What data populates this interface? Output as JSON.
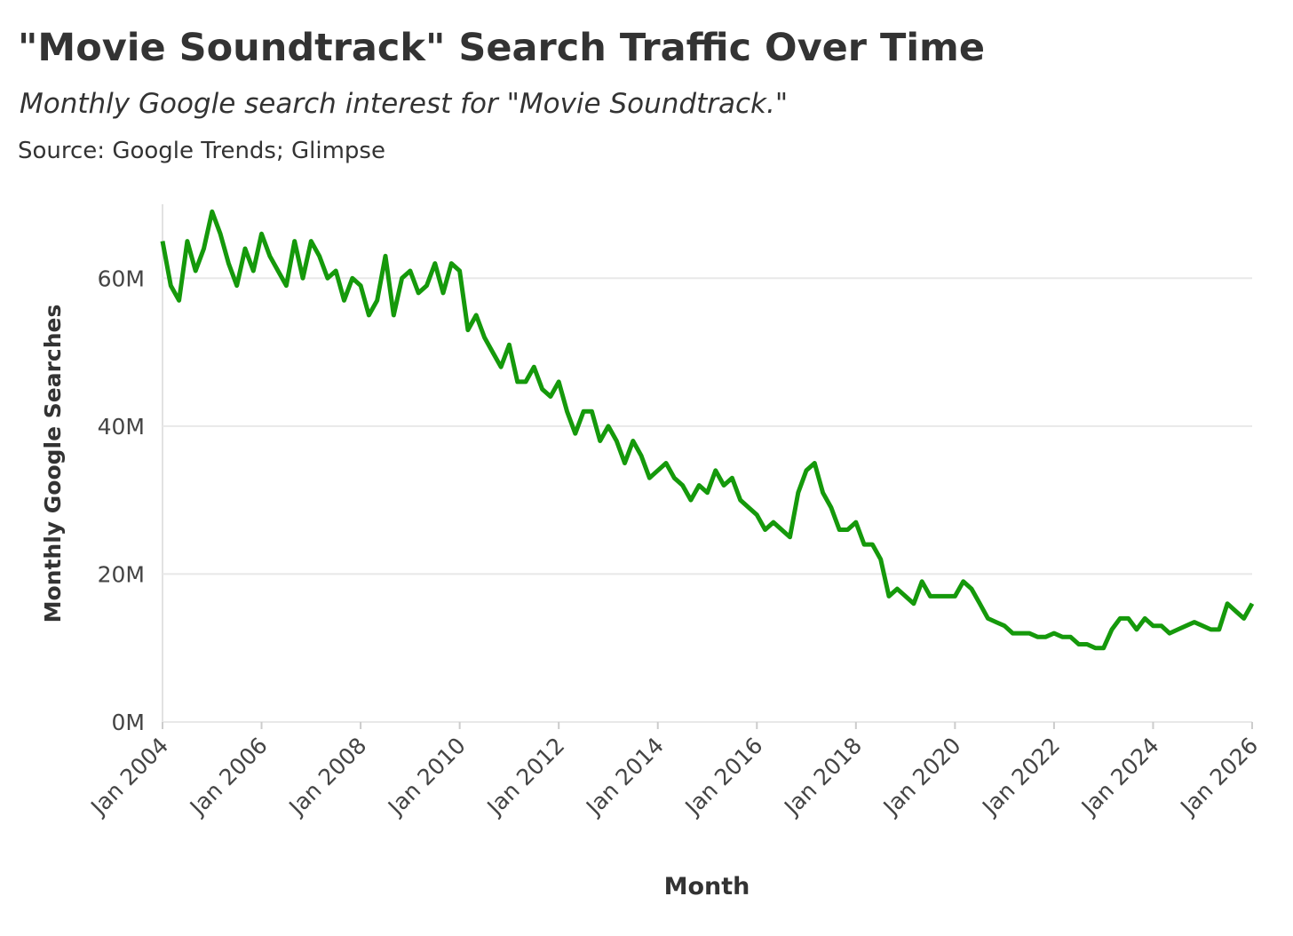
{
  "chart_data": {
    "type": "line",
    "title": "\"Movie Soundtrack\" Search Traffic Over Time",
    "subtitle": "Monthly Google search interest for \"Movie Soundtrack.\"",
    "source": "Source: Google Trends; Glimpse",
    "x_label": "Month",
    "y_label": "Monthly Google Searches",
    "grid": true,
    "xlim": [
      "2004-01",
      "2026-01"
    ],
    "xticks": [
      {
        "value": "2004-01",
        "label": "Jan 2004"
      },
      {
        "value": "2006-01",
        "label": "Jan 2006"
      },
      {
        "value": "2008-01",
        "label": "Jan 2008"
      },
      {
        "value": "2010-01",
        "label": "Jan 2010"
      },
      {
        "value": "2012-01",
        "label": "Jan 2012"
      },
      {
        "value": "2014-01",
        "label": "Jan 2014"
      },
      {
        "value": "2016-01",
        "label": "Jan 2016"
      },
      {
        "value": "2018-01",
        "label": "Jan 2018"
      },
      {
        "value": "2020-01",
        "label": "Jan 2020"
      },
      {
        "value": "2022-01",
        "label": "Jan 2022"
      },
      {
        "value": "2024-01",
        "label": "Jan 2024"
      },
      {
        "value": "2026-01",
        "label": "Jan 2026"
      }
    ],
    "ylim": [
      0,
      70000000
    ],
    "yticks": [
      {
        "value": 0,
        "label": "0M"
      },
      {
        "value": 20000000,
        "label": "20M"
      },
      {
        "value": 40000000,
        "label": "40M"
      },
      {
        "value": 60000000,
        "label": "60M"
      }
    ],
    "x": [
      "2004-01",
      "2004-03",
      "2004-05",
      "2004-07",
      "2004-09",
      "2004-11",
      "2005-01",
      "2005-03",
      "2005-05",
      "2005-07",
      "2005-09",
      "2005-11",
      "2006-01",
      "2006-03",
      "2006-05",
      "2006-07",
      "2006-09",
      "2006-11",
      "2007-01",
      "2007-03",
      "2007-05",
      "2007-07",
      "2007-09",
      "2007-11",
      "2008-01",
      "2008-03",
      "2008-05",
      "2008-07",
      "2008-09",
      "2008-11",
      "2009-01",
      "2009-03",
      "2009-05",
      "2009-07",
      "2009-09",
      "2009-11",
      "2010-01",
      "2010-03",
      "2010-05",
      "2010-07",
      "2010-09",
      "2010-11",
      "2011-01",
      "2011-03",
      "2011-05",
      "2011-07",
      "2011-09",
      "2011-11",
      "2012-01",
      "2012-03",
      "2012-05",
      "2012-07",
      "2012-09",
      "2012-11",
      "2013-01",
      "2013-03",
      "2013-05",
      "2013-07",
      "2013-09",
      "2013-11",
      "2014-01",
      "2014-03",
      "2014-05",
      "2014-07",
      "2014-09",
      "2014-11",
      "2015-01",
      "2015-03",
      "2015-05",
      "2015-07",
      "2015-09",
      "2015-11",
      "2016-01",
      "2016-03",
      "2016-05",
      "2016-07",
      "2016-09",
      "2016-11",
      "2017-01",
      "2017-03",
      "2017-05",
      "2017-07",
      "2017-09",
      "2017-11",
      "2018-01",
      "2018-03",
      "2018-05",
      "2018-07",
      "2018-09",
      "2018-11",
      "2019-01",
      "2019-03",
      "2019-05",
      "2019-07",
      "2019-09",
      "2019-11",
      "2020-01",
      "2020-03",
      "2020-05",
      "2020-07",
      "2020-09",
      "2020-11",
      "2021-01",
      "2021-03",
      "2021-05",
      "2021-07",
      "2021-09",
      "2021-11",
      "2022-01",
      "2022-03",
      "2022-05",
      "2022-07",
      "2022-09",
      "2022-11",
      "2023-01",
      "2023-03",
      "2023-05",
      "2023-07",
      "2023-09",
      "2023-11",
      "2024-01",
      "2024-03",
      "2024-05",
      "2024-07",
      "2024-09",
      "2024-11",
      "2025-01",
      "2025-03",
      "2025-05",
      "2025-07",
      "2025-09",
      "2025-11",
      "2026-01"
    ],
    "series": [
      {
        "name": "Monthly Google Searches",
        "color": "#15990b",
        "values": [
          65000000,
          59000000,
          57000000,
          65000000,
          61000000,
          64000000,
          69000000,
          66000000,
          62000000,
          59000000,
          64000000,
          61000000,
          66000000,
          63000000,
          61000000,
          59000000,
          65000000,
          60000000,
          65000000,
          63000000,
          60000000,
          61000000,
          57000000,
          60000000,
          59000000,
          55000000,
          57000000,
          63000000,
          55000000,
          60000000,
          61000000,
          58000000,
          59000000,
          62000000,
          58000000,
          62000000,
          61000000,
          53000000,
          55000000,
          52000000,
          50000000,
          48000000,
          51000000,
          46000000,
          46000000,
          48000000,
          45000000,
          44000000,
          46000000,
          42000000,
          39000000,
          42000000,
          42000000,
          38000000,
          40000000,
          38000000,
          35000000,
          38000000,
          36000000,
          33000000,
          34000000,
          35000000,
          33000000,
          32000000,
          30000000,
          32000000,
          31000000,
          34000000,
          32000000,
          33000000,
          30000000,
          29000000,
          28000000,
          26000000,
          27000000,
          26000000,
          25000000,
          31000000,
          34000000,
          35000000,
          31000000,
          29000000,
          26000000,
          26000000,
          27000000,
          24000000,
          24000000,
          22000000,
          17000000,
          18000000,
          17000000,
          16000000,
          19000000,
          17000000,
          17000000,
          17000000,
          17000000,
          19000000,
          18000000,
          16000000,
          14000000,
          13500000,
          13000000,
          12000000,
          12000000,
          12000000,
          11500000,
          11500000,
          12000000,
          11500000,
          11500000,
          10500000,
          10500000,
          10000000,
          10000000,
          12500000,
          14000000,
          14000000,
          12500000,
          14000000,
          13000000,
          13000000,
          12000000,
          12500000,
          13000000,
          13500000,
          13000000,
          12500000,
          12500000,
          16000000,
          15000000,
          14000000,
          16000000
        ]
      }
    ]
  }
}
